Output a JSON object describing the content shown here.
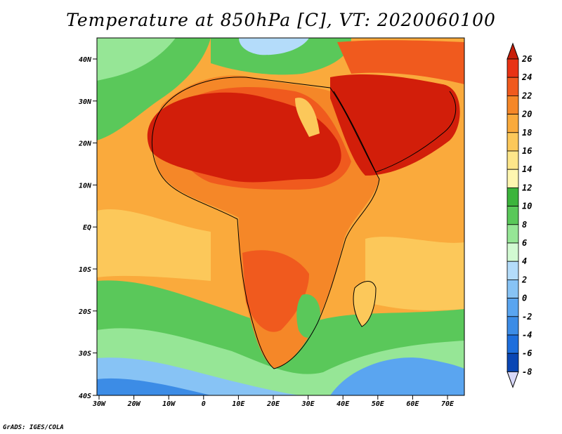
{
  "title": "Temperature at 850hPa [C], VT: 2020060100",
  "credit": "GrADS: IGES/COLA",
  "lat_labels": [
    "40N",
    "30N",
    "20N",
    "10N",
    "EQ",
    "10S",
    "20S",
    "30S",
    "40S"
  ],
  "lon_labels": [
    "30W",
    "20W",
    "10W",
    "0",
    "10E",
    "20E",
    "30E",
    "40E",
    "50E",
    "60E",
    "70E"
  ],
  "colorbar": {
    "ticks": [
      "26",
      "24",
      "22",
      "20",
      "18",
      "16",
      "14",
      "12",
      "10",
      "8",
      "6",
      "4",
      "2",
      "0",
      "-2",
      "-4",
      "-6",
      "-8"
    ],
    "colors": [
      "#e83214",
      "#f05a1e",
      "#f58728",
      "#faaa3c",
      "#fcc85a",
      "#fde68a",
      "#fef6b0",
      "#3cb43c",
      "#5ac85a",
      "#96e696",
      "#d2fad2",
      "#b4dcfa",
      "#87c3f5",
      "#5aa5f0",
      "#3c8ce6",
      "#1e6edc",
      "#0a46b4",
      "#0a1e78"
    ]
  },
  "regions": {
    "sahara": "#d21e0a",
    "arabia": "#d21e0a",
    "hot_land": "#f05a1e",
    "warm_land": "#f58728",
    "ocean_warm": "#faaa3c",
    "ocean_mild": "#fcc85a",
    "cool": "#5ac85a",
    "cold": "#96e696",
    "very_cold": "#5aa5f0",
    "coldest": "#3c8ce6"
  }
}
